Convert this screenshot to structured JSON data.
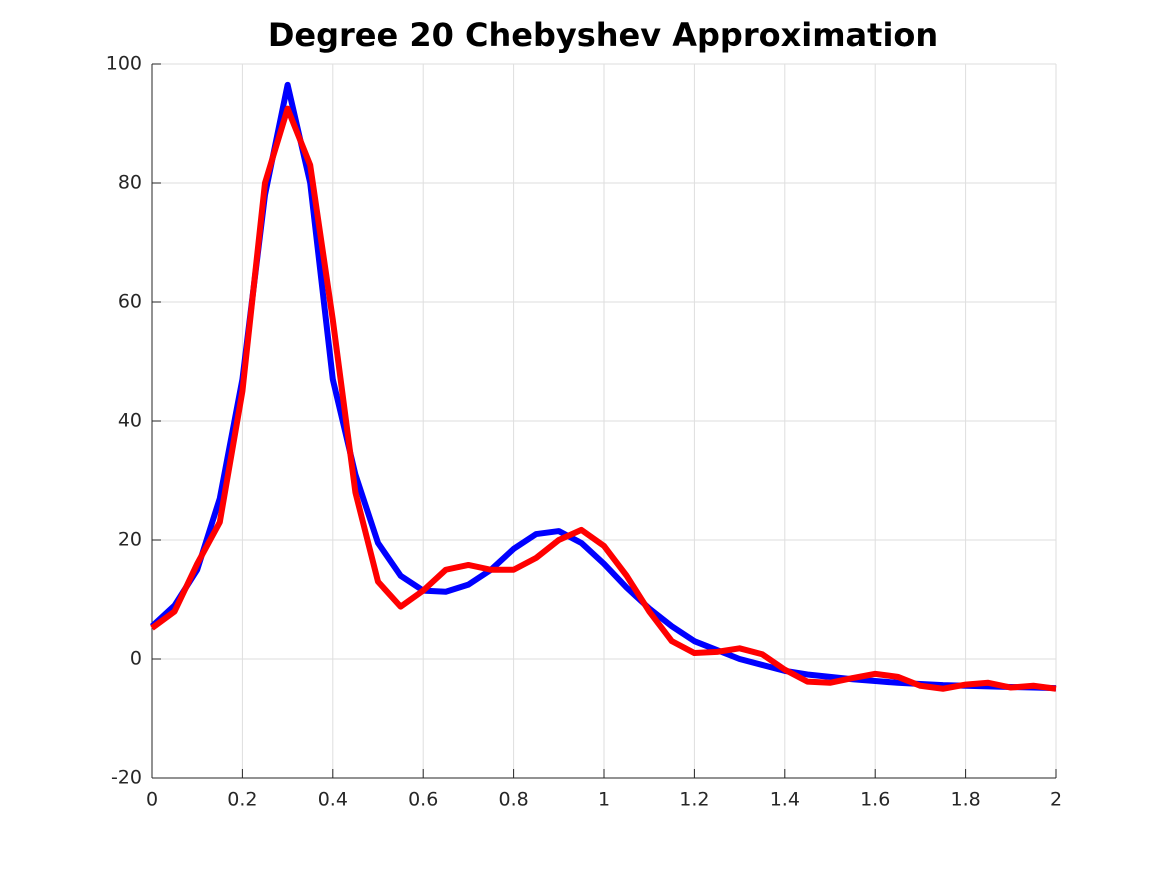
{
  "chart_data": {
    "type": "line",
    "title": "Degree 20 Chebyshev Approximation",
    "x": [
      0,
      0.05,
      0.1,
      0.15,
      0.2,
      0.25,
      0.3,
      0.35,
      0.4,
      0.45,
      0.5,
      0.55,
      0.6,
      0.65,
      0.7,
      0.75,
      0.8,
      0.85,
      0.9,
      0.95,
      1,
      1.05,
      1.1,
      1.15,
      1.2,
      1.25,
      1.3,
      1.35,
      1.4,
      1.45,
      1.5,
      1.55,
      1.6,
      1.65,
      1.7,
      1.75,
      1.8,
      1.85,
      1.9,
      1.95,
      2
    ],
    "series": [
      {
        "color": "#0000ff",
        "values": [
          5.5,
          9,
          15,
          27,
          47,
          78,
          96.5,
          80,
          47,
          31,
          19.5,
          14,
          11.5,
          11.3,
          12.5,
          15,
          18.5,
          21,
          21.5,
          19.5,
          16,
          12,
          8.5,
          5.5,
          3,
          1.5,
          0,
          -1,
          -2,
          -2.6,
          -3,
          -3.4,
          -3.7,
          -4,
          -4.2,
          -4.4,
          -4.5,
          -4.6,
          -4.7,
          -4.8,
          -4.9
        ]
      },
      {
        "color": "#ff0000",
        "values": [
          5.2,
          8,
          16,
          23,
          45,
          80,
          92.5,
          83,
          57,
          28,
          13,
          8.8,
          11.5,
          15,
          15.8,
          15,
          15,
          17,
          20,
          21.7,
          19,
          14,
          8,
          3,
          1,
          1.2,
          1.8,
          0.8,
          -1.8,
          -3.8,
          -4,
          -3.2,
          -2.5,
          -3,
          -4.5,
          -5,
          -4.3,
          -4,
          -4.8,
          -4.5,
          -5
        ]
      }
    ],
    "xlim": [
      0,
      2
    ],
    "xticks": [
      0,
      0.2,
      0.4,
      0.6,
      0.8,
      1,
      1.2,
      1.4,
      1.6,
      1.8,
      2
    ],
    "ylim": [
      -20,
      100
    ],
    "yticks": [
      -20,
      0,
      20,
      40,
      60,
      80,
      100
    ],
    "grid": true
  }
}
